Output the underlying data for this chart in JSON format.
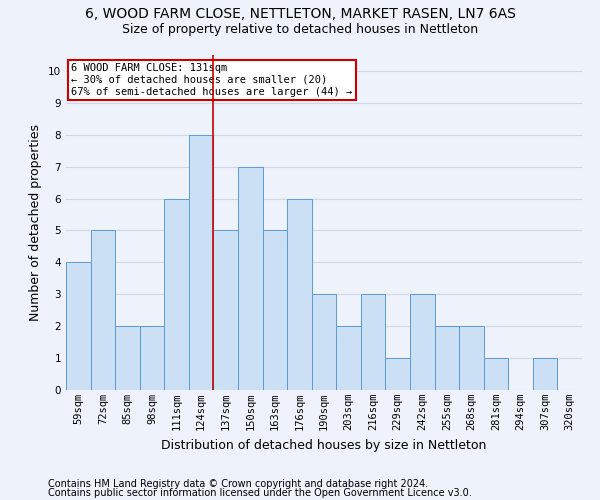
{
  "title1": "6, WOOD FARM CLOSE, NETTLETON, MARKET RASEN, LN7 6AS",
  "title2": "Size of property relative to detached houses in Nettleton",
  "xlabel": "Distribution of detached houses by size in Nettleton",
  "ylabel": "Number of detached properties",
  "footer1": "Contains HM Land Registry data © Crown copyright and database right 2024.",
  "footer2": "Contains public sector information licensed under the Open Government Licence v3.0.",
  "bins": [
    "59sqm",
    "72sqm",
    "85sqm",
    "98sqm",
    "111sqm",
    "124sqm",
    "137sqm",
    "150sqm",
    "163sqm",
    "176sqm",
    "190sqm",
    "203sqm",
    "216sqm",
    "229sqm",
    "242sqm",
    "255sqm",
    "268sqm",
    "281sqm",
    "294sqm",
    "307sqm",
    "320sqm"
  ],
  "values": [
    4,
    5,
    2,
    2,
    6,
    8,
    5,
    7,
    5,
    6,
    3,
    2,
    3,
    1,
    3,
    2,
    2,
    1,
    0,
    1,
    0
  ],
  "bar_color": "#cce0f5",
  "bar_edge_color": "#5b9bd5",
  "grid_color": "#d0d8e8",
  "vline_x": 5.5,
  "vline_color": "#cc0000",
  "annotation_box_text": "6 WOOD FARM CLOSE: 131sqm\n← 30% of detached houses are smaller (20)\n67% of semi-detached houses are larger (44) →",
  "annotation_box_color": "#cc0000",
  "annotation_box_fill": "white",
  "ylim": [
    0,
    10.5
  ],
  "yticks": [
    0,
    1,
    2,
    3,
    4,
    5,
    6,
    7,
    8,
    9,
    10
  ],
  "background_color": "#eef2fa",
  "title1_fontsize": 10,
  "title2_fontsize": 9,
  "xlabel_fontsize": 9,
  "ylabel_fontsize": 9,
  "footer_fontsize": 7,
  "tick_fontsize": 7.5,
  "annot_fontsize": 7.5
}
